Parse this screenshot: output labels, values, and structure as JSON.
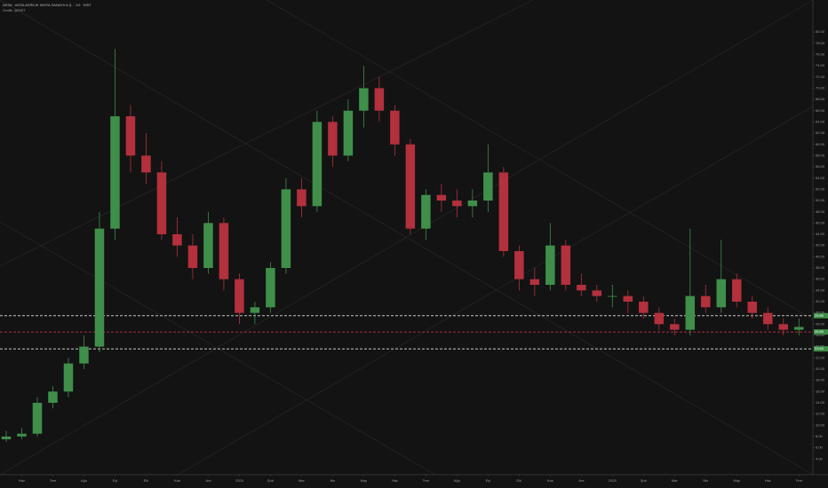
{
  "chart_data": {
    "type": "candlestick",
    "title": "AKSA · AKSA AKRILIK KIMYA SANAYII A.Ş. · 1G · BIST",
    "subtitle": "Grafik: @BIST",
    "up_color": "#3f8f4a",
    "down_color": "#b3303d",
    "x": [
      -0.5,
      0,
      0.5,
      1,
      1.5,
      2,
      2.5,
      3,
      3.5,
      4,
      4.5,
      5,
      5.5,
      6,
      6.5,
      7,
      7.5,
      8,
      8.5,
      9,
      9.5,
      10,
      10.5,
      11,
      11.5,
      12,
      12.5,
      13,
      13.5,
      14,
      14.5,
      15,
      15.5,
      16,
      16.5,
      17,
      17.5,
      18,
      18.5,
      19,
      19.5,
      20,
      20.5,
      21,
      21.5,
      22,
      22.5,
      23,
      23.5,
      24,
      24.5,
      25
    ],
    "open": [
      7.5,
      8,
      8.5,
      14,
      16,
      21,
      24,
      45,
      65,
      58,
      55,
      44,
      42,
      38,
      46,
      36,
      30,
      31,
      38,
      52,
      49,
      64,
      58,
      66,
      70,
      66,
      60,
      45,
      51,
      50,
      49,
      50,
      55,
      41,
      36,
      35,
      42,
      35,
      34,
      33,
      33,
      32,
      30,
      28,
      27,
      33,
      31,
      36,
      32,
      30,
      28,
      27
    ],
    "high": [
      9,
      9.5,
      15,
      17,
      22,
      26,
      48,
      77,
      67,
      62,
      57,
      47,
      44,
      48,
      47,
      37,
      32,
      39,
      54,
      54,
      66,
      65,
      68,
      74,
      72,
      67,
      61,
      52,
      53,
      52,
      52,
      60,
      56,
      42,
      38,
      46,
      43,
      37,
      35,
      35,
      34,
      33,
      31,
      29,
      45,
      35,
      43,
      37,
      33,
      31,
      29,
      29
    ],
    "low": [
      7,
      7.5,
      8,
      13,
      15,
      20,
      23,
      43,
      55,
      53,
      43,
      40,
      36,
      37,
      34,
      28,
      28,
      30,
      37,
      47,
      48,
      56,
      57,
      63,
      64,
      58,
      44,
      43,
      48,
      47,
      47,
      48,
      40,
      34,
      33,
      34,
      34,
      33,
      32,
      31,
      30,
      29,
      27,
      26,
      26,
      30,
      30,
      31,
      29,
      27,
      26,
      26
    ],
    "close": [
      8,
      8.5,
      14,
      16,
      21,
      24,
      45,
      65,
      58,
      55,
      44,
      42,
      38,
      46,
      36,
      30,
      31,
      38,
      52,
      49,
      64,
      58,
      66,
      70,
      66,
      60,
      45,
      51,
      50,
      49,
      50,
      55,
      41,
      36,
      35,
      42,
      35,
      34,
      33,
      33,
      32,
      30,
      28,
      27,
      33,
      31,
      36,
      32,
      30,
      28,
      27,
      27.5
    ],
    "xlim": [
      -0.7,
      25.45
    ],
    "xticks": [
      {
        "value": 0,
        "label": "Haz"
      },
      {
        "value": 1,
        "label": "Tem"
      },
      {
        "value": 2,
        "label": "Ağu"
      },
      {
        "value": 3,
        "label": "Eyl"
      },
      {
        "value": 4,
        "label": "Eki"
      },
      {
        "value": 5,
        "label": "Kas"
      },
      {
        "value": 6,
        "label": "Ara"
      },
      {
        "value": 7,
        "label": "2024"
      },
      {
        "value": 8,
        "label": "Şub"
      },
      {
        "value": 9,
        "label": "Mar"
      },
      {
        "value": 10,
        "label": "Nis"
      },
      {
        "value": 11,
        "label": "May"
      },
      {
        "value": 12,
        "label": "Haz"
      },
      {
        "value": 13,
        "label": "Tem"
      },
      {
        "value": 14,
        "label": "Ağu"
      },
      {
        "value": 15,
        "label": "Eyl"
      },
      {
        "value": 16,
        "label": "Eki"
      },
      {
        "value": 17,
        "label": "Kas"
      },
      {
        "value": 18,
        "label": "Ara"
      },
      {
        "value": 19,
        "label": "2025"
      },
      {
        "value": 20,
        "label": "Şub"
      },
      {
        "value": 21,
        "label": "Mar"
      },
      {
        "value": 22,
        "label": "Nis"
      },
      {
        "value": 23,
        "label": "May"
      },
      {
        "value": 24,
        "label": "Haz"
      },
      {
        "value": 25,
        "label": "Tem"
      }
    ],
    "ylim": [
      1.2,
      85.7
    ],
    "yticks": [
      {
        "value": 4,
        "label": "4.00"
      },
      {
        "value": 6,
        "label": "6.00"
      },
      {
        "value": 8,
        "label": "8.00"
      },
      {
        "value": 10,
        "label": "10.00"
      },
      {
        "value": 12,
        "label": "12.00"
      },
      {
        "value": 14,
        "label": "14.00"
      },
      {
        "value": 16,
        "label": "16.00"
      },
      {
        "value": 18,
        "label": "18.00"
      },
      {
        "value": 20,
        "label": "20.00"
      },
      {
        "value": 22,
        "label": "22.00"
      },
      {
        "value": 24,
        "label": "24.00"
      },
      {
        "value": 26,
        "label": "26.00"
      },
      {
        "value": 28,
        "label": "28.00"
      },
      {
        "value": 30,
        "label": "30.00"
      },
      {
        "value": 32,
        "label": "32.00"
      },
      {
        "value": 34,
        "label": "34.00"
      },
      {
        "value": 36,
        "label": "36.00"
      },
      {
        "value": 38,
        "label": "38.00"
      },
      {
        "value": 40,
        "label": "40.00"
      },
      {
        "value": 42,
        "label": "42.00"
      },
      {
        "value": 44,
        "label": "44.00"
      },
      {
        "value": 46,
        "label": "46.00"
      },
      {
        "value": 48,
        "label": "48.00"
      },
      {
        "value": 50,
        "label": "50.00"
      },
      {
        "value": 52,
        "label": "52.00"
      },
      {
        "value": 54,
        "label": "54.00"
      },
      {
        "value": 56,
        "label": "56.00"
      },
      {
        "value": 58,
        "label": "58.00"
      },
      {
        "value": 60,
        "label": "60.00"
      },
      {
        "value": 62,
        "label": "62.00"
      },
      {
        "value": 64,
        "label": "64.00"
      },
      {
        "value": 66,
        "label": "66.00"
      },
      {
        "value": 68,
        "label": "68.00"
      },
      {
        "value": 70,
        "label": "70.00"
      },
      {
        "value": 72,
        "label": "72.00"
      },
      {
        "value": 74,
        "label": "74.00"
      },
      {
        "value": 76,
        "label": "76.00"
      },
      {
        "value": 78,
        "label": "78.00"
      },
      {
        "value": 80,
        "label": "80.00"
      }
    ],
    "levels": [
      {
        "value": 29.5,
        "label": "29.50",
        "color": "#e0e0e0"
      },
      {
        "value": 26.6,
        "label": "26.60",
        "color": "#c0303c"
      },
      {
        "value": 23.6,
        "label": "23.60",
        "color": "#e0e0e0"
      }
    ]
  }
}
